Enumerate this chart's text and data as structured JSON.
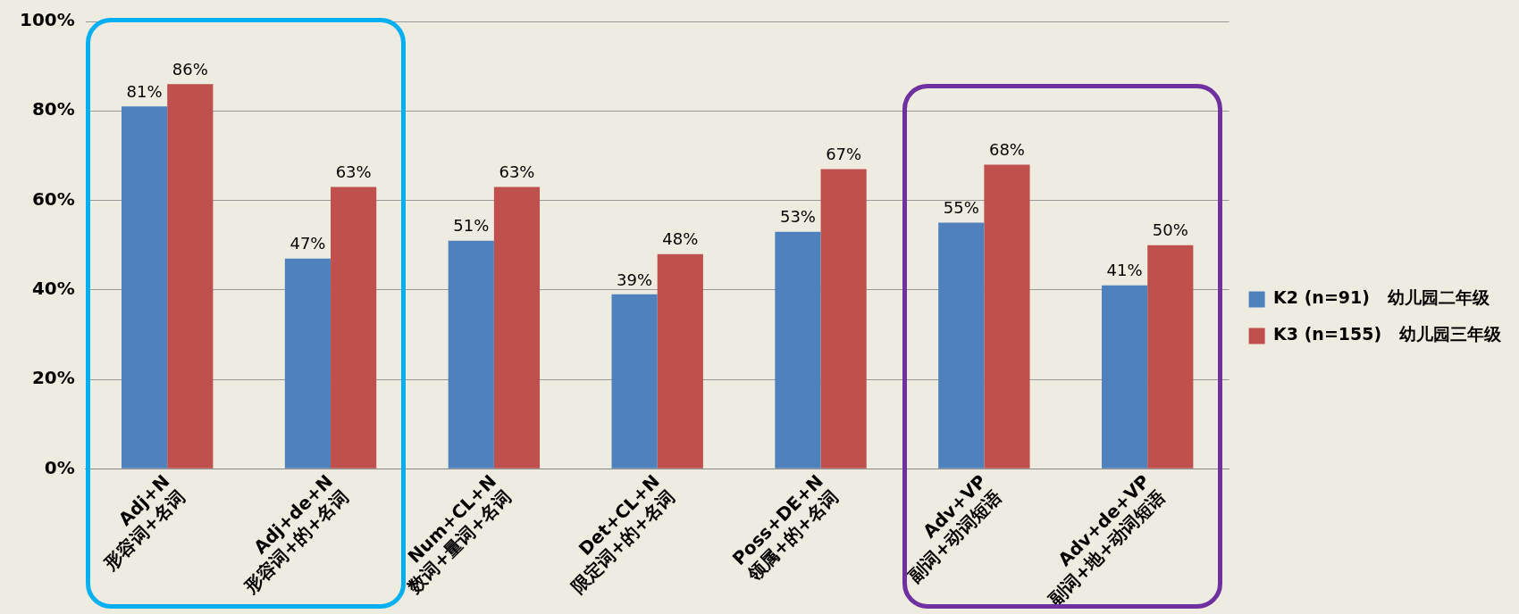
{
  "chart_data": {
    "type": "bar",
    "categories": [
      "Adj+N\n形容词+名词",
      "Adj+de+N\n形容词+的+名词",
      "Num+CL+N\n数词+量词+名词",
      "Det+CL+N\n限定词+的+名词",
      "Poss+DE+N\n领属+的+名词",
      "Adv+VP\n副词+动词短语",
      "Adv+de+VP\n副词+地+动词短语"
    ],
    "series": [
      {
        "name": "K2 (n=91)   幼儿园二年级",
        "color": "#4f81bd",
        "values": [
          81,
          47,
          51,
          39,
          53,
          55,
          41
        ],
        "value_labels": [
          "81%",
          "47%",
          "51%",
          "39%",
          "53%",
          "55%",
          "41%"
        ]
      },
      {
        "name": "K3 (n=155)   幼儿园三年级",
        "color": "#c0504d",
        "values": [
          86,
          63,
          63,
          48,
          67,
          68,
          50
        ],
        "value_labels": [
          "86%",
          "63%",
          "63%",
          "48%",
          "67%",
          "68%",
          "50%"
        ]
      }
    ],
    "ylim": [
      0,
      100
    ],
    "yticks": [
      {
        "value": 0,
        "label": "0%"
      },
      {
        "value": 20,
        "label": "20%"
      },
      {
        "value": 40,
        "label": "40%"
      },
      {
        "value": 60,
        "label": "60%"
      },
      {
        "value": 80,
        "label": "80%"
      },
      {
        "value": 100,
        "label": "100%"
      }
    ],
    "grid": "y",
    "legend": "right"
  }
}
